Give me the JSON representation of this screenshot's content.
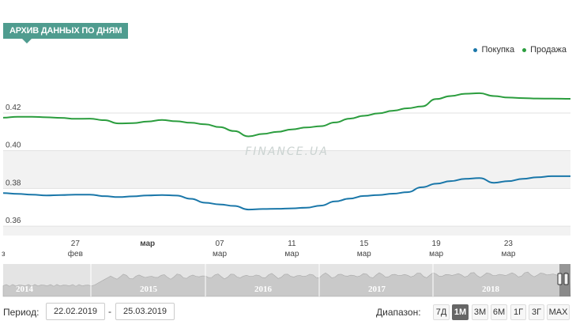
{
  "header": {
    "title": "АРХИВ ДАННЫХ ПО ДНЯМ"
  },
  "watermark": "FINANCE.UA",
  "chart_data": {
    "type": "line",
    "y_ticks": [
      "0.42",
      "0.40",
      "0.38",
      "0.36"
    ],
    "ylim": [
      0.355,
      0.438
    ],
    "x_ticks": [
      {
        "top": "",
        "bottom": "з",
        "day": 0.1
      },
      {
        "top": "27",
        "bottom": "фев",
        "day": 5.0
      },
      {
        "top": "мар",
        "bottom": "",
        "day": 10.0
      },
      {
        "top": "07",
        "bottom": "мар",
        "day": 15.0
      },
      {
        "top": "11",
        "bottom": "мар",
        "day": 20.0
      },
      {
        "top": "15",
        "bottom": "мар",
        "day": 25.0
      },
      {
        "top": "19",
        "bottom": "мар",
        "day": 30.0
      },
      {
        "top": "23",
        "bottom": "мар",
        "day": 35.0
      }
    ],
    "xlim": [
      0,
      39.3
    ],
    "legend_position": "top-right",
    "grid": true,
    "series": [
      {
        "name": "Покупка",
        "color": "#1a77a9",
        "points": [
          [
            0,
            0.3775
          ],
          [
            1,
            0.3771
          ],
          [
            2,
            0.3767
          ],
          [
            3,
            0.3763
          ],
          [
            4,
            0.3765
          ],
          [
            5,
            0.3767
          ],
          [
            6,
            0.3767
          ],
          [
            7,
            0.3759
          ],
          [
            8,
            0.3754
          ],
          [
            9,
            0.3758
          ],
          [
            10,
            0.3763
          ],
          [
            11,
            0.3765
          ],
          [
            12,
            0.3762
          ],
          [
            13,
            0.3745
          ],
          [
            14,
            0.3724
          ],
          [
            15,
            0.3715
          ],
          [
            16,
            0.3707
          ],
          [
            17,
            0.3688
          ],
          [
            18,
            0.3691
          ],
          [
            19,
            0.3692
          ],
          [
            20,
            0.3694
          ],
          [
            21,
            0.3698
          ],
          [
            22,
            0.3709
          ],
          [
            23,
            0.3731
          ],
          [
            24,
            0.3746
          ],
          [
            25,
            0.376
          ],
          [
            26,
            0.3765
          ],
          [
            27,
            0.3772
          ],
          [
            28,
            0.378
          ],
          [
            29,
            0.3806
          ],
          [
            30,
            0.3825
          ],
          [
            31,
            0.3839
          ],
          [
            32,
            0.3851
          ],
          [
            33,
            0.3855
          ],
          [
            34,
            0.383
          ],
          [
            35,
            0.3839
          ],
          [
            36,
            0.3851
          ],
          [
            37,
            0.3859
          ],
          [
            38,
            0.3865
          ],
          [
            39.3,
            0.3865
          ]
        ]
      },
      {
        "name": "Продажа",
        "color": "#2b9d3e",
        "points": [
          [
            0,
            0.4175
          ],
          [
            1,
            0.418
          ],
          [
            2,
            0.418
          ],
          [
            3,
            0.4177
          ],
          [
            4,
            0.4174
          ],
          [
            5,
            0.4169
          ],
          [
            6,
            0.417
          ],
          [
            7,
            0.4162
          ],
          [
            8,
            0.4145
          ],
          [
            9,
            0.4146
          ],
          [
            10,
            0.4155
          ],
          [
            11,
            0.4163
          ],
          [
            12,
            0.4156
          ],
          [
            13,
            0.4148
          ],
          [
            14,
            0.414
          ],
          [
            15,
            0.4125
          ],
          [
            16,
            0.4104
          ],
          [
            17,
            0.4076
          ],
          [
            18,
            0.4089
          ],
          [
            19,
            0.41
          ],
          [
            20,
            0.4113
          ],
          [
            21,
            0.4123
          ],
          [
            22,
            0.413
          ],
          [
            23,
            0.415
          ],
          [
            24,
            0.417
          ],
          [
            25,
            0.4185
          ],
          [
            26,
            0.4198
          ],
          [
            27,
            0.4212
          ],
          [
            28,
            0.4225
          ],
          [
            29,
            0.4235
          ],
          [
            30,
            0.4274
          ],
          [
            31,
            0.429
          ],
          [
            32,
            0.4302
          ],
          [
            33,
            0.4305
          ],
          [
            34,
            0.429
          ],
          [
            35,
            0.4282
          ],
          [
            36,
            0.4279
          ],
          [
            37,
            0.4277
          ],
          [
            38,
            0.4276
          ],
          [
            39.3,
            0.4275
          ]
        ]
      }
    ]
  },
  "navigator": {
    "years": [
      "2014",
      "2015",
      "2016",
      "2017",
      "2018"
    ]
  },
  "controls": {
    "period_label": "Период:",
    "date_from": "22.02.2019",
    "dash": "-",
    "date_to": "25.03.2019",
    "range_label": "Диапазон:",
    "range_buttons": [
      "7Д",
      "1М",
      "3М",
      "6М",
      "1Г",
      "3Г",
      "MAX"
    ],
    "active_range": "1М"
  }
}
